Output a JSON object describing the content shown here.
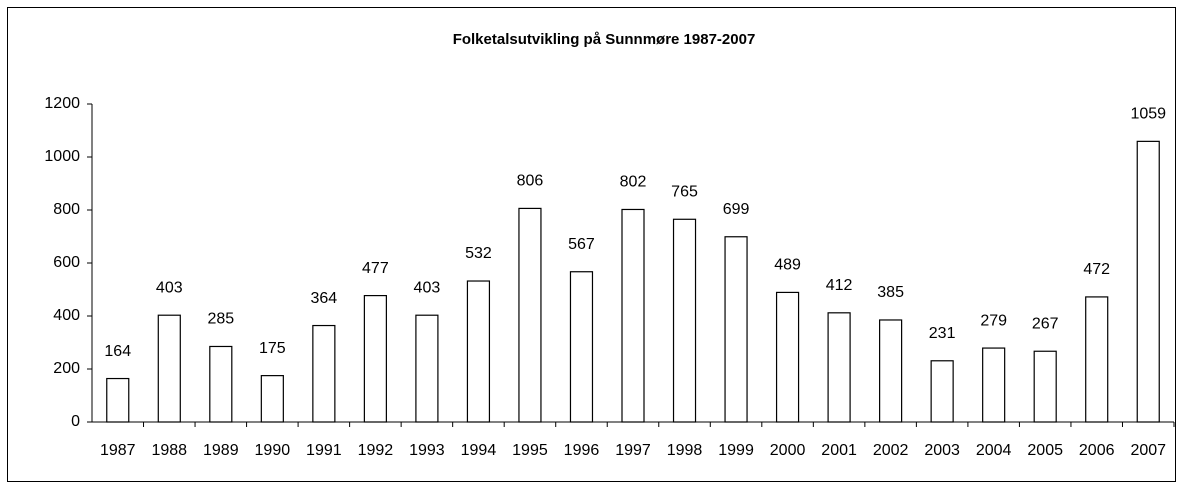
{
  "chart_data": {
    "type": "bar",
    "title": "Folketalsutvikling på Sunnmøre 1987-2007",
    "categories": [
      "1987",
      "1988",
      "1989",
      "1990",
      "1991",
      "1992",
      "1993",
      "1994",
      "1995",
      "1996",
      "1997",
      "1998",
      "1999",
      "2000",
      "2001",
      "2002",
      "2003",
      "2004",
      "2005",
      "2006",
      "2007"
    ],
    "values": [
      164,
      403,
      285,
      175,
      364,
      477,
      403,
      532,
      806,
      567,
      802,
      765,
      699,
      489,
      412,
      385,
      231,
      279,
      267,
      472,
      1059
    ],
    "color": "#ffffff",
    "ylim": [
      0,
      1200
    ],
    "yticks": [
      0,
      200,
      400,
      600,
      800,
      1000,
      1200
    ],
    "grid": false
  }
}
